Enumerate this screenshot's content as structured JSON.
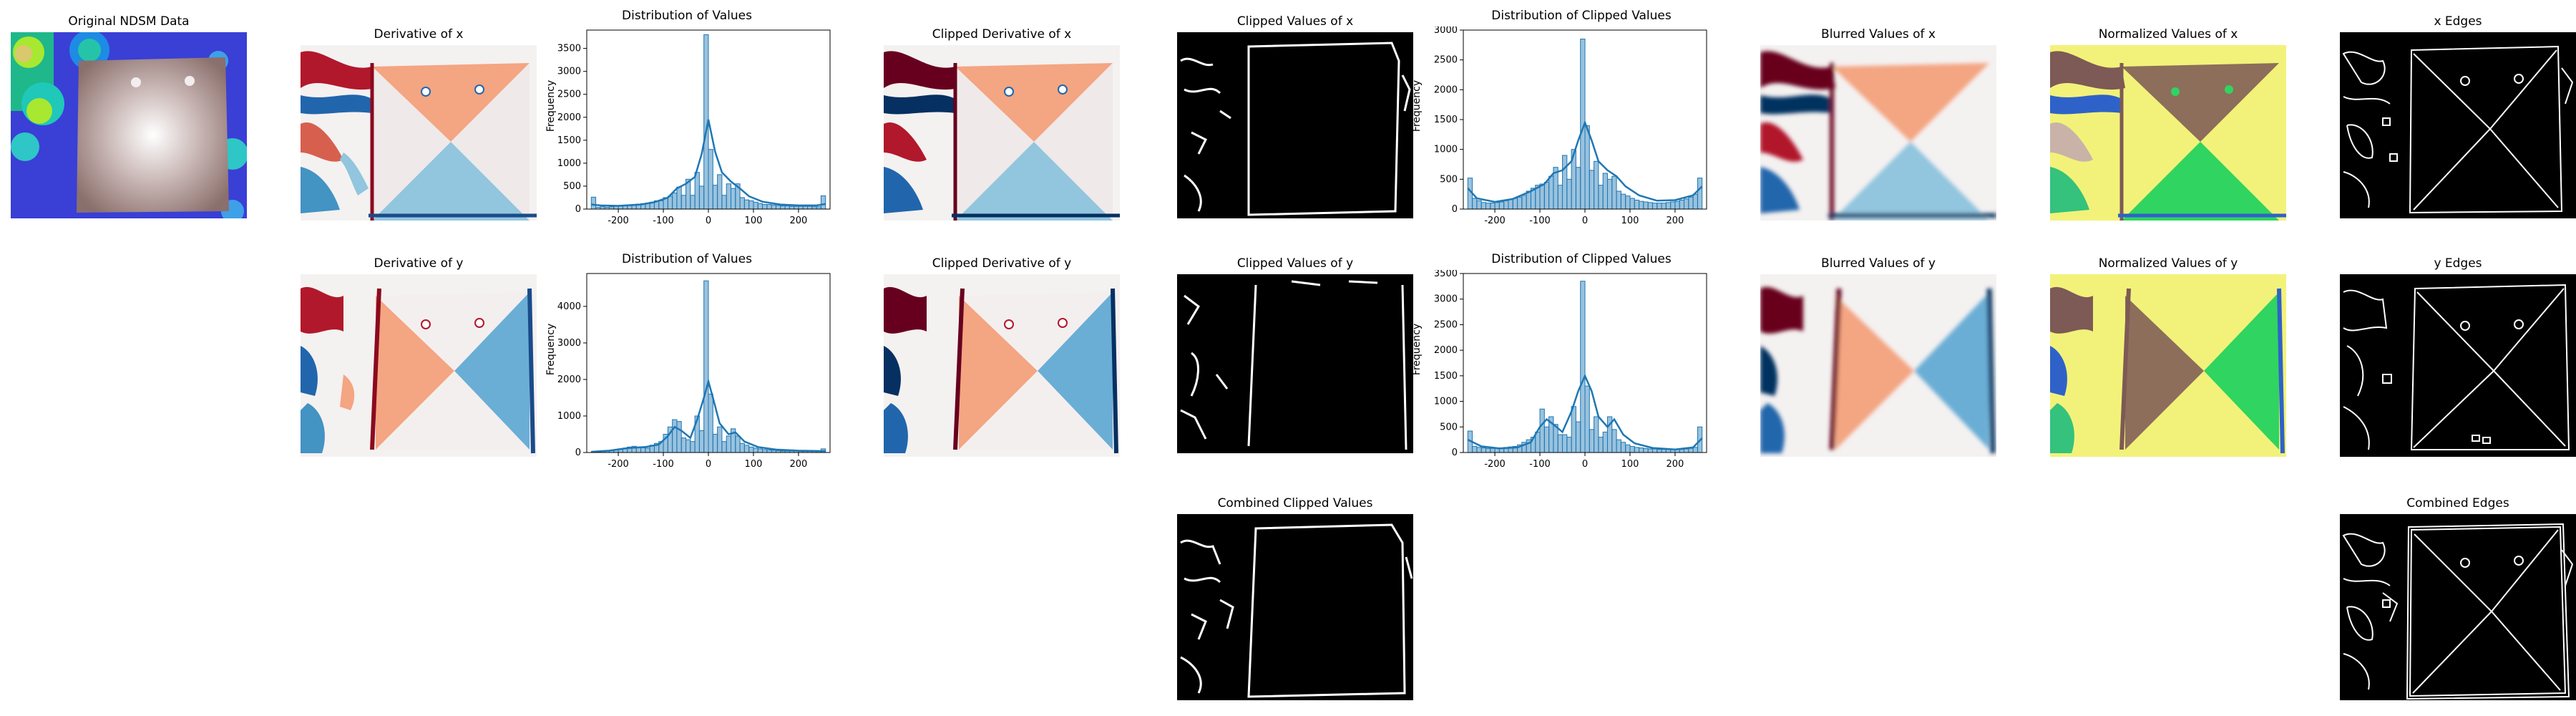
{
  "panels": {
    "original": {
      "title": "Original NDSM Data"
    },
    "deriv_x": {
      "title": "Derivative of x"
    },
    "deriv_y": {
      "title": "Derivative of y"
    },
    "clipped_deriv_x": {
      "title": "Clipped Derivative of x"
    },
    "clipped_deriv_y": {
      "title": "Clipped Derivative of y"
    },
    "clipped_vals_x": {
      "title": "Clipped Values  of x"
    },
    "clipped_vals_y": {
      "title": "Clipped Values  of y"
    },
    "combined_clipped": {
      "title": "Combined Clipped Values"
    },
    "blurred_x": {
      "title": "Blurred Values of x"
    },
    "blurred_y": {
      "title": "Blurred Values of y"
    },
    "normalized_x": {
      "title": "Normalized Values of x"
    },
    "normalized_y": {
      "title": "Normalized Values of y"
    },
    "edges_x": {
      "title": "x Edges"
    },
    "edges_y": {
      "title": "y Edges"
    },
    "edges_combined": {
      "title": "Combined Edges"
    }
  },
  "chart_data": [
    {
      "type": "histogram",
      "title": "Distribution of Values",
      "xlabel": "",
      "ylabel": "Frequency",
      "xlim": [
        -270,
        270
      ],
      "ylim": [
        0,
        3900
      ],
      "xticks": [
        -200,
        -100,
        0,
        100,
        200
      ],
      "yticks": [
        0,
        500,
        1000,
        1500,
        2000,
        2500,
        3000,
        3500
      ],
      "bin_width": 10,
      "bin_centers": [
        -255,
        -245,
        -235,
        -225,
        -215,
        -205,
        -195,
        -185,
        -175,
        -165,
        -155,
        -145,
        -135,
        -125,
        -115,
        -105,
        -95,
        -85,
        -75,
        -65,
        -55,
        -45,
        -35,
        -25,
        -15,
        -5,
        5,
        15,
        25,
        35,
        45,
        55,
        65,
        75,
        85,
        95,
        105,
        115,
        125,
        135,
        145,
        155,
        165,
        175,
        185,
        195,
        205,
        215,
        225,
        235,
        245,
        255
      ],
      "counts": [
        260,
        40,
        50,
        40,
        50,
        60,
        80,
        80,
        90,
        100,
        110,
        120,
        130,
        150,
        180,
        180,
        250,
        280,
        350,
        480,
        300,
        650,
        300,
        800,
        500,
        3800,
        1300,
        520,
        750,
        300,
        550,
        450,
        550,
        250,
        200,
        180,
        150,
        120,
        100,
        100,
        90,
        80,
        70,
        70,
        60,
        60,
        60,
        60,
        60,
        50,
        50,
        290
      ],
      "kde": [
        [
          -260,
          100
        ],
        [
          -240,
          80
        ],
        [
          -200,
          70
        ],
        [
          -150,
          100
        ],
        [
          -120,
          150
        ],
        [
          -90,
          250
        ],
        [
          -70,
          450
        ],
        [
          -50,
          550
        ],
        [
          -30,
          700
        ],
        [
          -15,
          1200
        ],
        [
          0,
          1950
        ],
        [
          15,
          1250
        ],
        [
          30,
          800
        ],
        [
          50,
          600
        ],
        [
          70,
          450
        ],
        [
          90,
          280
        ],
        [
          120,
          160
        ],
        [
          160,
          100
        ],
        [
          200,
          80
        ],
        [
          240,
          80
        ],
        [
          260,
          110
        ]
      ],
      "color": "#1f77b4"
    },
    {
      "type": "histogram",
      "title": "Distribution of Values",
      "xlabel": "",
      "ylabel": "Frequency",
      "xlim": [
        -270,
        270
      ],
      "ylim": [
        0,
        4900
      ],
      "xticks": [
        -200,
        -100,
        0,
        100,
        200
      ],
      "yticks": [
        0,
        1000,
        2000,
        3000,
        4000
      ],
      "bin_width": 10,
      "bin_centers": [
        -255,
        -245,
        -235,
        -225,
        -215,
        -205,
        -195,
        -185,
        -175,
        -165,
        -155,
        -145,
        -135,
        -125,
        -115,
        -105,
        -95,
        -85,
        -75,
        -65,
        -55,
        -45,
        -35,
        -25,
        -15,
        -5,
        5,
        15,
        25,
        35,
        45,
        55,
        65,
        75,
        85,
        95,
        105,
        115,
        125,
        135,
        145,
        155,
        165,
        175,
        185,
        195,
        205,
        215,
        225,
        235,
        245,
        255
      ],
      "counts": [
        20,
        30,
        40,
        50,
        60,
        80,
        100,
        120,
        150,
        170,
        150,
        130,
        120,
        200,
        250,
        300,
        500,
        700,
        900,
        850,
        400,
        350,
        300,
        1000,
        600,
        4700,
        1600,
        500,
        700,
        300,
        450,
        650,
        450,
        250,
        200,
        150,
        120,
        100,
        80,
        70,
        60,
        50,
        40,
        40,
        40,
        40,
        30,
        30,
        30,
        30,
        30,
        100
      ],
      "kde": [
        [
          -260,
          20
        ],
        [
          -220,
          50
        ],
        [
          -180,
          120
        ],
        [
          -140,
          150
        ],
        [
          -110,
          220
        ],
        [
          -90,
          450
        ],
        [
          -75,
          700
        ],
        [
          -60,
          600
        ],
        [
          -40,
          400
        ],
        [
          -25,
          900
        ],
        [
          -10,
          1500
        ],
        [
          0,
          1950
        ],
        [
          10,
          1500
        ],
        [
          25,
          800
        ],
        [
          45,
          500
        ],
        [
          60,
          550
        ],
        [
          80,
          300
        ],
        [
          110,
          150
        ],
        [
          150,
          80
        ],
        [
          200,
          50
        ],
        [
          260,
          40
        ]
      ],
      "color": "#1f77b4"
    },
    {
      "type": "histogram",
      "title": "Distribution of Clipped Values",
      "xlabel": "",
      "ylabel": "Frequency",
      "xlim": [
        -270,
        270
      ],
      "ylim": [
        0,
        3000
      ],
      "xticks": [
        -200,
        -100,
        0,
        100,
        200
      ],
      "yticks": [
        0,
        500,
        1000,
        1500,
        2000,
        2500,
        3000
      ],
      "bin_width": 10,
      "bin_centers": [
        -255,
        -245,
        -235,
        -225,
        -215,
        -205,
        -195,
        -185,
        -175,
        -165,
        -155,
        -145,
        -135,
        -125,
        -115,
        -105,
        -95,
        -85,
        -75,
        -65,
        -55,
        -45,
        -35,
        -25,
        -15,
        -5,
        5,
        15,
        25,
        35,
        45,
        55,
        65,
        75,
        85,
        95,
        105,
        115,
        125,
        135,
        145,
        155,
        165,
        175,
        185,
        195,
        205,
        215,
        225,
        235,
        245,
        255
      ],
      "counts": [
        520,
        180,
        140,
        110,
        100,
        100,
        110,
        120,
        140,
        160,
        180,
        200,
        230,
        300,
        350,
        400,
        420,
        450,
        550,
        700,
        400,
        900,
        500,
        1000,
        700,
        2850,
        1400,
        650,
        800,
        400,
        600,
        500,
        550,
        300,
        250,
        220,
        180,
        150,
        130,
        120,
        110,
        100,
        100,
        100,
        110,
        120,
        130,
        150,
        170,
        200,
        250,
        520
      ],
      "kde": [
        [
          -260,
          350
        ],
        [
          -240,
          180
        ],
        [
          -200,
          120
        ],
        [
          -160,
          170
        ],
        [
          -120,
          300
        ],
        [
          -90,
          420
        ],
        [
          -70,
          600
        ],
        [
          -50,
          650
        ],
        [
          -30,
          800
        ],
        [
          -15,
          1150
        ],
        [
          0,
          1450
        ],
        [
          15,
          1150
        ],
        [
          30,
          800
        ],
        [
          50,
          650
        ],
        [
          70,
          550
        ],
        [
          90,
          380
        ],
        [
          120,
          230
        ],
        [
          160,
          140
        ],
        [
          200,
          150
        ],
        [
          240,
          230
        ],
        [
          260,
          380
        ]
      ],
      "color": "#1f77b4"
    },
    {
      "type": "histogram",
      "title": "Distribution of Clipped Values",
      "xlabel": "",
      "ylabel": "Frequency",
      "xlim": [
        -270,
        270
      ],
      "ylim": [
        0,
        3500
      ],
      "xticks": [
        -200,
        -100,
        0,
        100,
        200
      ],
      "yticks": [
        0,
        500,
        1000,
        1500,
        2000,
        2500,
        3000,
        3500
      ],
      "bin_width": 10,
      "bin_centers": [
        -255,
        -245,
        -235,
        -225,
        -215,
        -205,
        -195,
        -185,
        -175,
        -165,
        -155,
        -145,
        -135,
        -125,
        -115,
        -105,
        -95,
        -85,
        -75,
        -65,
        -55,
        -45,
        -35,
        -25,
        -15,
        -5,
        5,
        15,
        25,
        35,
        45,
        55,
        65,
        75,
        85,
        95,
        105,
        115,
        125,
        135,
        145,
        155,
        165,
        175,
        185,
        195,
        205,
        215,
        225,
        235,
        245,
        255
      ],
      "counts": [
        420,
        120,
        100,
        90,
        80,
        80,
        80,
        90,
        100,
        110,
        120,
        150,
        200,
        250,
        300,
        400,
        850,
        500,
        700,
        550,
        350,
        350,
        300,
        900,
        600,
        3350,
        1300,
        450,
        700,
        300,
        400,
        700,
        450,
        250,
        200,
        150,
        120,
        100,
        90,
        80,
        70,
        70,
        60,
        60,
        60,
        60,
        60,
        60,
        70,
        80,
        100,
        500
      ],
      "kde": [
        [
          -260,
          250
        ],
        [
          -230,
          120
        ],
        [
          -190,
          80
        ],
        [
          -150,
          100
        ],
        [
          -120,
          200
        ],
        [
          -100,
          500
        ],
        [
          -85,
          650
        ],
        [
          -70,
          550
        ],
        [
          -50,
          400
        ],
        [
          -30,
          800
        ],
        [
          -15,
          1200
        ],
        [
          0,
          1500
        ],
        [
          15,
          1200
        ],
        [
          30,
          700
        ],
        [
          50,
          500
        ],
        [
          65,
          650
        ],
        [
          85,
          350
        ],
        [
          110,
          180
        ],
        [
          150,
          90
        ],
        [
          200,
          60
        ],
        [
          240,
          100
        ],
        [
          260,
          280
        ]
      ],
      "color": "#1f77b4"
    }
  ]
}
